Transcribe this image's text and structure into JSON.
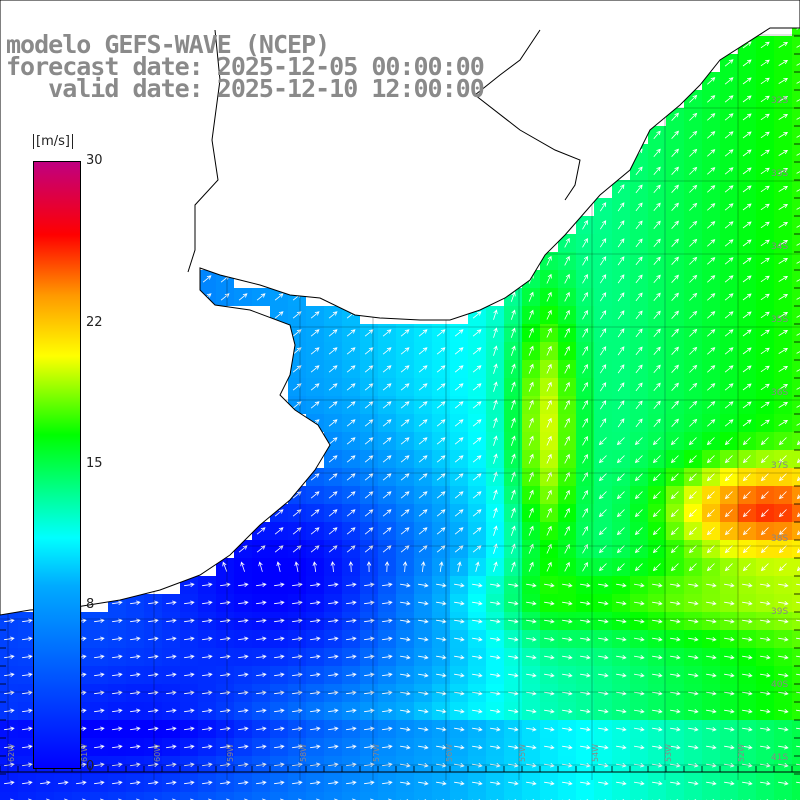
{
  "title": {
    "line1": "modelo GEFS-WAVE (NCEP)",
    "line2": "forecast date: 2025-12-05 00:00:00",
    "line3": "   valid date: 2025-12-10 12:00:00"
  },
  "legend": {
    "unit": "[m/s]",
    "ticks": [
      "30",
      "22",
      "15",
      "8",
      "0"
    ],
    "tick_values": [
      30,
      22,
      15,
      8,
      0
    ],
    "range": [
      0,
      30
    ]
  },
  "map": {
    "lat_labels": [
      "32S",
      "33S",
      "34S",
      "35S",
      "36S",
      "37S",
      "38S",
      "39S",
      "40S",
      "41S"
    ],
    "lon_labels": [
      "62W",
      "61W",
      "60W",
      "59W",
      "58W",
      "57W",
      "56W",
      "55W",
      "54W",
      "53W",
      "52W"
    ],
    "field": "wind speed",
    "colors": {
      "land": "#ffffff",
      "coast": "#000000",
      "grid": "#000000",
      "arrows": "#ffffff"
    }
  }
}
